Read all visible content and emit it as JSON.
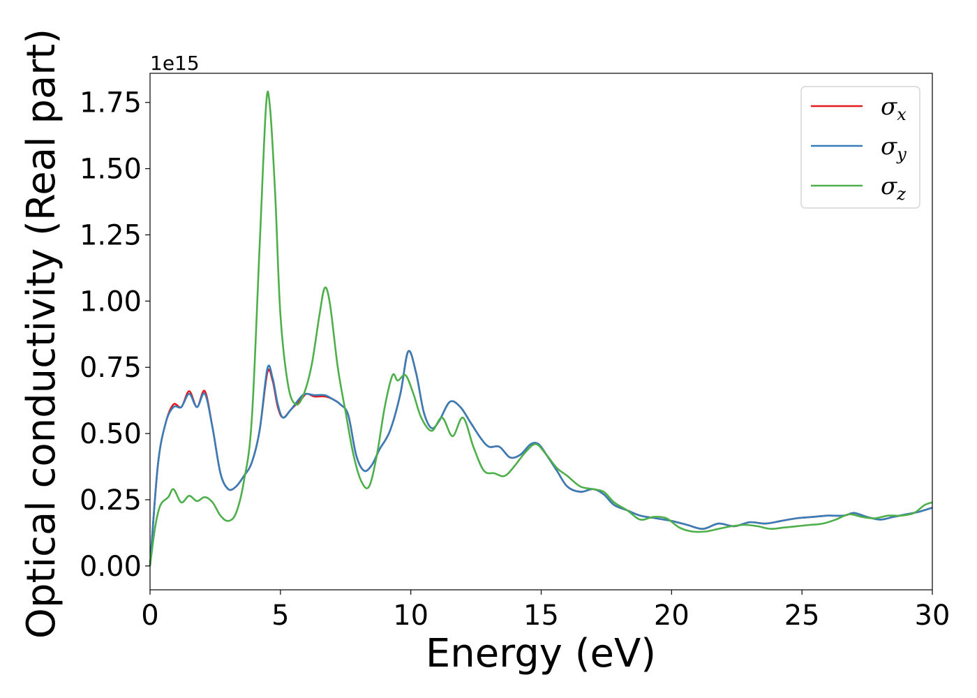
{
  "chart_data": {
    "type": "line",
    "xlabel": "Energy (eV)",
    "ylabel": "Optical conductivity (Real part)",
    "y_offset_label": "1e15",
    "xlim": [
      0,
      30
    ],
    "ylim": [
      -0.09,
      1.86
    ],
    "xticks": [
      0,
      5,
      10,
      15,
      20,
      25,
      30
    ],
    "xtick_labels": [
      "0",
      "5",
      "10",
      "15",
      "20",
      "25",
      "30"
    ],
    "yticks": [
      0.0,
      0.25,
      0.5,
      0.75,
      1.0,
      1.25,
      1.5,
      1.75
    ],
    "ytick_labels": [
      "0.00",
      "0.25",
      "0.50",
      "0.75",
      "1.00",
      "1.25",
      "1.50",
      "1.75"
    ],
    "grid": false,
    "legend_position": "top-right",
    "series": [
      {
        "name": "σx",
        "legend_base": "σ",
        "legend_sub": "x",
        "color": "#e41a1c",
        "points": [
          [
            0,
            0
          ],
          [
            0.3,
            0.38
          ],
          [
            0.6,
            0.54
          ],
          [
            0.9,
            0.61
          ],
          [
            1.2,
            0.6
          ],
          [
            1.5,
            0.66
          ],
          [
            1.8,
            0.6
          ],
          [
            2.1,
            0.66
          ],
          [
            2.4,
            0.52
          ],
          [
            2.7,
            0.35
          ],
          [
            3.0,
            0.29
          ],
          [
            3.3,
            0.3
          ],
          [
            3.6,
            0.34
          ],
          [
            3.9,
            0.39
          ],
          [
            4.2,
            0.51
          ],
          [
            4.5,
            0.73
          ],
          [
            4.7,
            0.7
          ],
          [
            4.9,
            0.6
          ],
          [
            5.1,
            0.56
          ],
          [
            5.4,
            0.59
          ],
          [
            5.8,
            0.63
          ],
          [
            6.0,
            0.65
          ],
          [
            6.3,
            0.64
          ],
          [
            6.7,
            0.64
          ],
          [
            7.0,
            0.63
          ],
          [
            7.3,
            0.61
          ],
          [
            7.6,
            0.57
          ],
          [
            7.9,
            0.42
          ],
          [
            8.2,
            0.36
          ],
          [
            8.5,
            0.38
          ],
          [
            8.8,
            0.44
          ],
          [
            9.2,
            0.51
          ],
          [
            9.6,
            0.65
          ],
          [
            9.9,
            0.81
          ],
          [
            10.2,
            0.73
          ],
          [
            10.5,
            0.58
          ],
          [
            10.8,
            0.52
          ],
          [
            11.1,
            0.55
          ],
          [
            11.5,
            0.62
          ],
          [
            11.9,
            0.6
          ],
          [
            12.3,
            0.54
          ],
          [
            12.7,
            0.48
          ],
          [
            13.0,
            0.45
          ],
          [
            13.4,
            0.45
          ],
          [
            13.8,
            0.41
          ],
          [
            14.2,
            0.42
          ],
          [
            14.6,
            0.46
          ],
          [
            14.9,
            0.46
          ],
          [
            15.2,
            0.42
          ],
          [
            15.6,
            0.36
          ],
          [
            16.0,
            0.3
          ],
          [
            16.5,
            0.28
          ],
          [
            17.0,
            0.29
          ],
          [
            17.4,
            0.27
          ],
          [
            17.8,
            0.23
          ],
          [
            18.3,
            0.21
          ],
          [
            18.8,
            0.19
          ],
          [
            19.4,
            0.18
          ],
          [
            20.0,
            0.17
          ],
          [
            20.6,
            0.155
          ],
          [
            21.2,
            0.14
          ],
          [
            21.8,
            0.16
          ],
          [
            22.4,
            0.15
          ],
          [
            23.0,
            0.165
          ],
          [
            23.6,
            0.16
          ],
          [
            24.2,
            0.17
          ],
          [
            24.8,
            0.18
          ],
          [
            25.4,
            0.185
          ],
          [
            26.0,
            0.19
          ],
          [
            26.6,
            0.19
          ],
          [
            27.0,
            0.2
          ],
          [
            27.5,
            0.185
          ],
          [
            28.0,
            0.175
          ],
          [
            28.5,
            0.185
          ],
          [
            29.0,
            0.195
          ],
          [
            29.5,
            0.205
          ],
          [
            30.0,
            0.22
          ]
        ]
      },
      {
        "name": "σy",
        "legend_base": "σ",
        "legend_sub": "y",
        "color": "#377eb8",
        "points": [
          [
            0,
            0
          ],
          [
            0.3,
            0.38
          ],
          [
            0.6,
            0.54
          ],
          [
            0.9,
            0.6
          ],
          [
            1.2,
            0.6
          ],
          [
            1.5,
            0.65
          ],
          [
            1.8,
            0.6
          ],
          [
            2.1,
            0.65
          ],
          [
            2.4,
            0.52
          ],
          [
            2.7,
            0.35
          ],
          [
            3.0,
            0.29
          ],
          [
            3.3,
            0.3
          ],
          [
            3.6,
            0.34
          ],
          [
            3.9,
            0.39
          ],
          [
            4.2,
            0.51
          ],
          [
            4.5,
            0.745
          ],
          [
            4.7,
            0.71
          ],
          [
            4.9,
            0.61
          ],
          [
            5.1,
            0.56
          ],
          [
            5.4,
            0.59
          ],
          [
            5.8,
            0.64
          ],
          [
            6.0,
            0.65
          ],
          [
            6.3,
            0.645
          ],
          [
            6.7,
            0.645
          ],
          [
            7.0,
            0.63
          ],
          [
            7.3,
            0.61
          ],
          [
            7.6,
            0.57
          ],
          [
            7.9,
            0.42
          ],
          [
            8.2,
            0.36
          ],
          [
            8.5,
            0.38
          ],
          [
            8.8,
            0.44
          ],
          [
            9.2,
            0.51
          ],
          [
            9.6,
            0.65
          ],
          [
            9.9,
            0.81
          ],
          [
            10.2,
            0.73
          ],
          [
            10.5,
            0.58
          ],
          [
            10.8,
            0.52
          ],
          [
            11.1,
            0.55
          ],
          [
            11.5,
            0.62
          ],
          [
            11.9,
            0.6
          ],
          [
            12.3,
            0.54
          ],
          [
            12.7,
            0.48
          ],
          [
            13.0,
            0.45
          ],
          [
            13.4,
            0.45
          ],
          [
            13.8,
            0.41
          ],
          [
            14.2,
            0.42
          ],
          [
            14.6,
            0.46
          ],
          [
            14.9,
            0.46
          ],
          [
            15.2,
            0.42
          ],
          [
            15.6,
            0.36
          ],
          [
            16.0,
            0.3
          ],
          [
            16.5,
            0.28
          ],
          [
            17.0,
            0.29
          ],
          [
            17.4,
            0.27
          ],
          [
            17.8,
            0.23
          ],
          [
            18.3,
            0.21
          ],
          [
            18.8,
            0.19
          ],
          [
            19.4,
            0.18
          ],
          [
            20.0,
            0.17
          ],
          [
            20.6,
            0.155
          ],
          [
            21.2,
            0.14
          ],
          [
            21.8,
            0.16
          ],
          [
            22.4,
            0.15
          ],
          [
            23.0,
            0.165
          ],
          [
            23.6,
            0.16
          ],
          [
            24.2,
            0.17
          ],
          [
            24.8,
            0.18
          ],
          [
            25.4,
            0.185
          ],
          [
            26.0,
            0.19
          ],
          [
            26.6,
            0.19
          ],
          [
            27.0,
            0.2
          ],
          [
            27.5,
            0.185
          ],
          [
            28.0,
            0.175
          ],
          [
            28.5,
            0.185
          ],
          [
            29.0,
            0.195
          ],
          [
            29.5,
            0.205
          ],
          [
            30.0,
            0.22
          ]
        ]
      },
      {
        "name": "σz",
        "legend_base": "σ",
        "legend_sub": "z",
        "color": "#4daf4a",
        "points": [
          [
            0,
            0
          ],
          [
            0.2,
            0.15
          ],
          [
            0.4,
            0.23
          ],
          [
            0.7,
            0.26
          ],
          [
            0.9,
            0.29
          ],
          [
            1.2,
            0.24
          ],
          [
            1.5,
            0.265
          ],
          [
            1.8,
            0.245
          ],
          [
            2.1,
            0.26
          ],
          [
            2.4,
            0.24
          ],
          [
            2.7,
            0.19
          ],
          [
            3.0,
            0.17
          ],
          [
            3.3,
            0.2
          ],
          [
            3.6,
            0.32
          ],
          [
            3.9,
            0.55
          ],
          [
            4.2,
            1.2
          ],
          [
            4.45,
            1.74
          ],
          [
            4.6,
            1.73
          ],
          [
            4.8,
            1.4
          ],
          [
            5.0,
            0.95
          ],
          [
            5.3,
            0.68
          ],
          [
            5.6,
            0.61
          ],
          [
            5.9,
            0.65
          ],
          [
            6.2,
            0.76
          ],
          [
            6.5,
            0.95
          ],
          [
            6.7,
            1.05
          ],
          [
            6.9,
            0.99
          ],
          [
            7.2,
            0.75
          ],
          [
            7.5,
            0.58
          ],
          [
            7.8,
            0.42
          ],
          [
            8.1,
            0.32
          ],
          [
            8.4,
            0.3
          ],
          [
            8.7,
            0.42
          ],
          [
            9.0,
            0.6
          ],
          [
            9.3,
            0.72
          ],
          [
            9.5,
            0.7
          ],
          [
            9.8,
            0.72
          ],
          [
            10.1,
            0.65
          ],
          [
            10.4,
            0.56
          ],
          [
            10.8,
            0.51
          ],
          [
            11.2,
            0.56
          ],
          [
            11.6,
            0.49
          ],
          [
            12.0,
            0.56
          ],
          [
            12.4,
            0.45
          ],
          [
            12.8,
            0.36
          ],
          [
            13.2,
            0.35
          ],
          [
            13.6,
            0.34
          ],
          [
            14.0,
            0.38
          ],
          [
            14.4,
            0.43
          ],
          [
            14.8,
            0.46
          ],
          [
            15.2,
            0.42
          ],
          [
            15.6,
            0.37
          ],
          [
            16.0,
            0.34
          ],
          [
            16.5,
            0.3
          ],
          [
            17.0,
            0.29
          ],
          [
            17.4,
            0.28
          ],
          [
            17.8,
            0.24
          ],
          [
            18.3,
            0.21
          ],
          [
            18.8,
            0.175
          ],
          [
            19.3,
            0.185
          ],
          [
            19.8,
            0.18
          ],
          [
            20.3,
            0.145
          ],
          [
            20.8,
            0.13
          ],
          [
            21.3,
            0.13
          ],
          [
            21.8,
            0.14
          ],
          [
            22.3,
            0.15
          ],
          [
            22.8,
            0.155
          ],
          [
            23.3,
            0.15
          ],
          [
            23.8,
            0.14
          ],
          [
            24.3,
            0.145
          ],
          [
            24.8,
            0.15
          ],
          [
            25.3,
            0.155
          ],
          [
            25.8,
            0.16
          ],
          [
            26.3,
            0.175
          ],
          [
            26.8,
            0.195
          ],
          [
            27.3,
            0.185
          ],
          [
            27.8,
            0.18
          ],
          [
            28.3,
            0.19
          ],
          [
            28.8,
            0.19
          ],
          [
            29.3,
            0.2
          ],
          [
            29.7,
            0.23
          ],
          [
            30.0,
            0.24
          ]
        ]
      }
    ]
  }
}
